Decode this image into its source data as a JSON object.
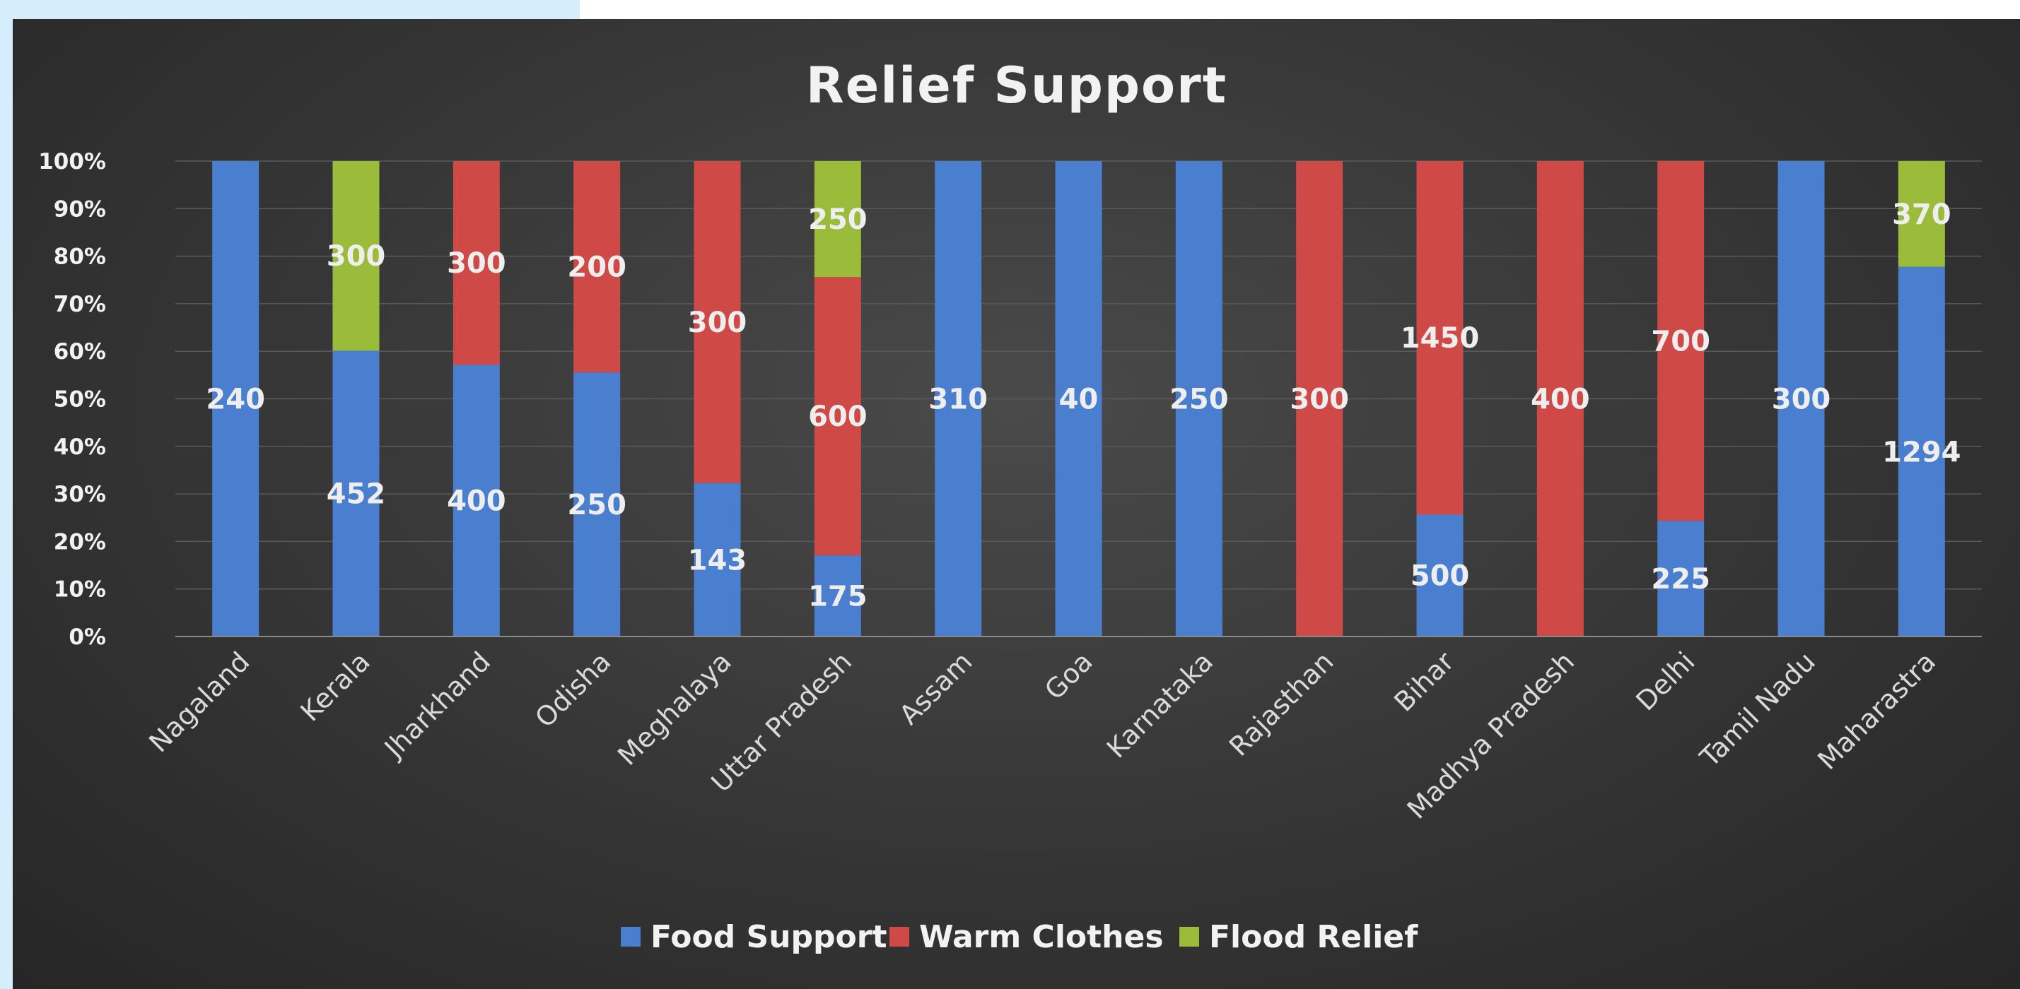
{
  "colors": {
    "food": "#4a7fcf",
    "warm": "#cf4a47",
    "flood": "#9bbb3b"
  },
  "chart_data": {
    "type": "bar",
    "stacked": "percent",
    "title": "Relief Support",
    "categories": [
      "Nagaland",
      "Kerala",
      "Jharkhand",
      "Odisha",
      "Meghalaya",
      "Uttar Pradesh",
      "Assam",
      "Goa",
      "Karnataka",
      "Rajasthan",
      "Bihar",
      "Madhya Pradesh",
      "Delhi",
      "Tamil Nadu",
      "Maharastra"
    ],
    "series": [
      {
        "name": "Food Support",
        "values": [
          240,
          452,
          400,
          250,
          143,
          175,
          310,
          40,
          250,
          0,
          500,
          0,
          225,
          300,
          1294
        ]
      },
      {
        "name": "Warm Clothes",
        "values": [
          0,
          0,
          300,
          200,
          300,
          600,
          0,
          0,
          0,
          300,
          1450,
          400,
          700,
          0,
          0
        ]
      },
      {
        "name": "Flood Relief",
        "values": [
          0,
          300,
          0,
          0,
          0,
          250,
          0,
          0,
          0,
          0,
          0,
          0,
          0,
          0,
          370
        ]
      }
    ],
    "ylim": [
      0,
      1
    ],
    "yticks": [
      "0%",
      "10%",
      "20%",
      "30%",
      "40%",
      "50%",
      "60%",
      "70%",
      "80%",
      "90%",
      "100%"
    ],
    "grid": true,
    "legend": "bottom"
  }
}
